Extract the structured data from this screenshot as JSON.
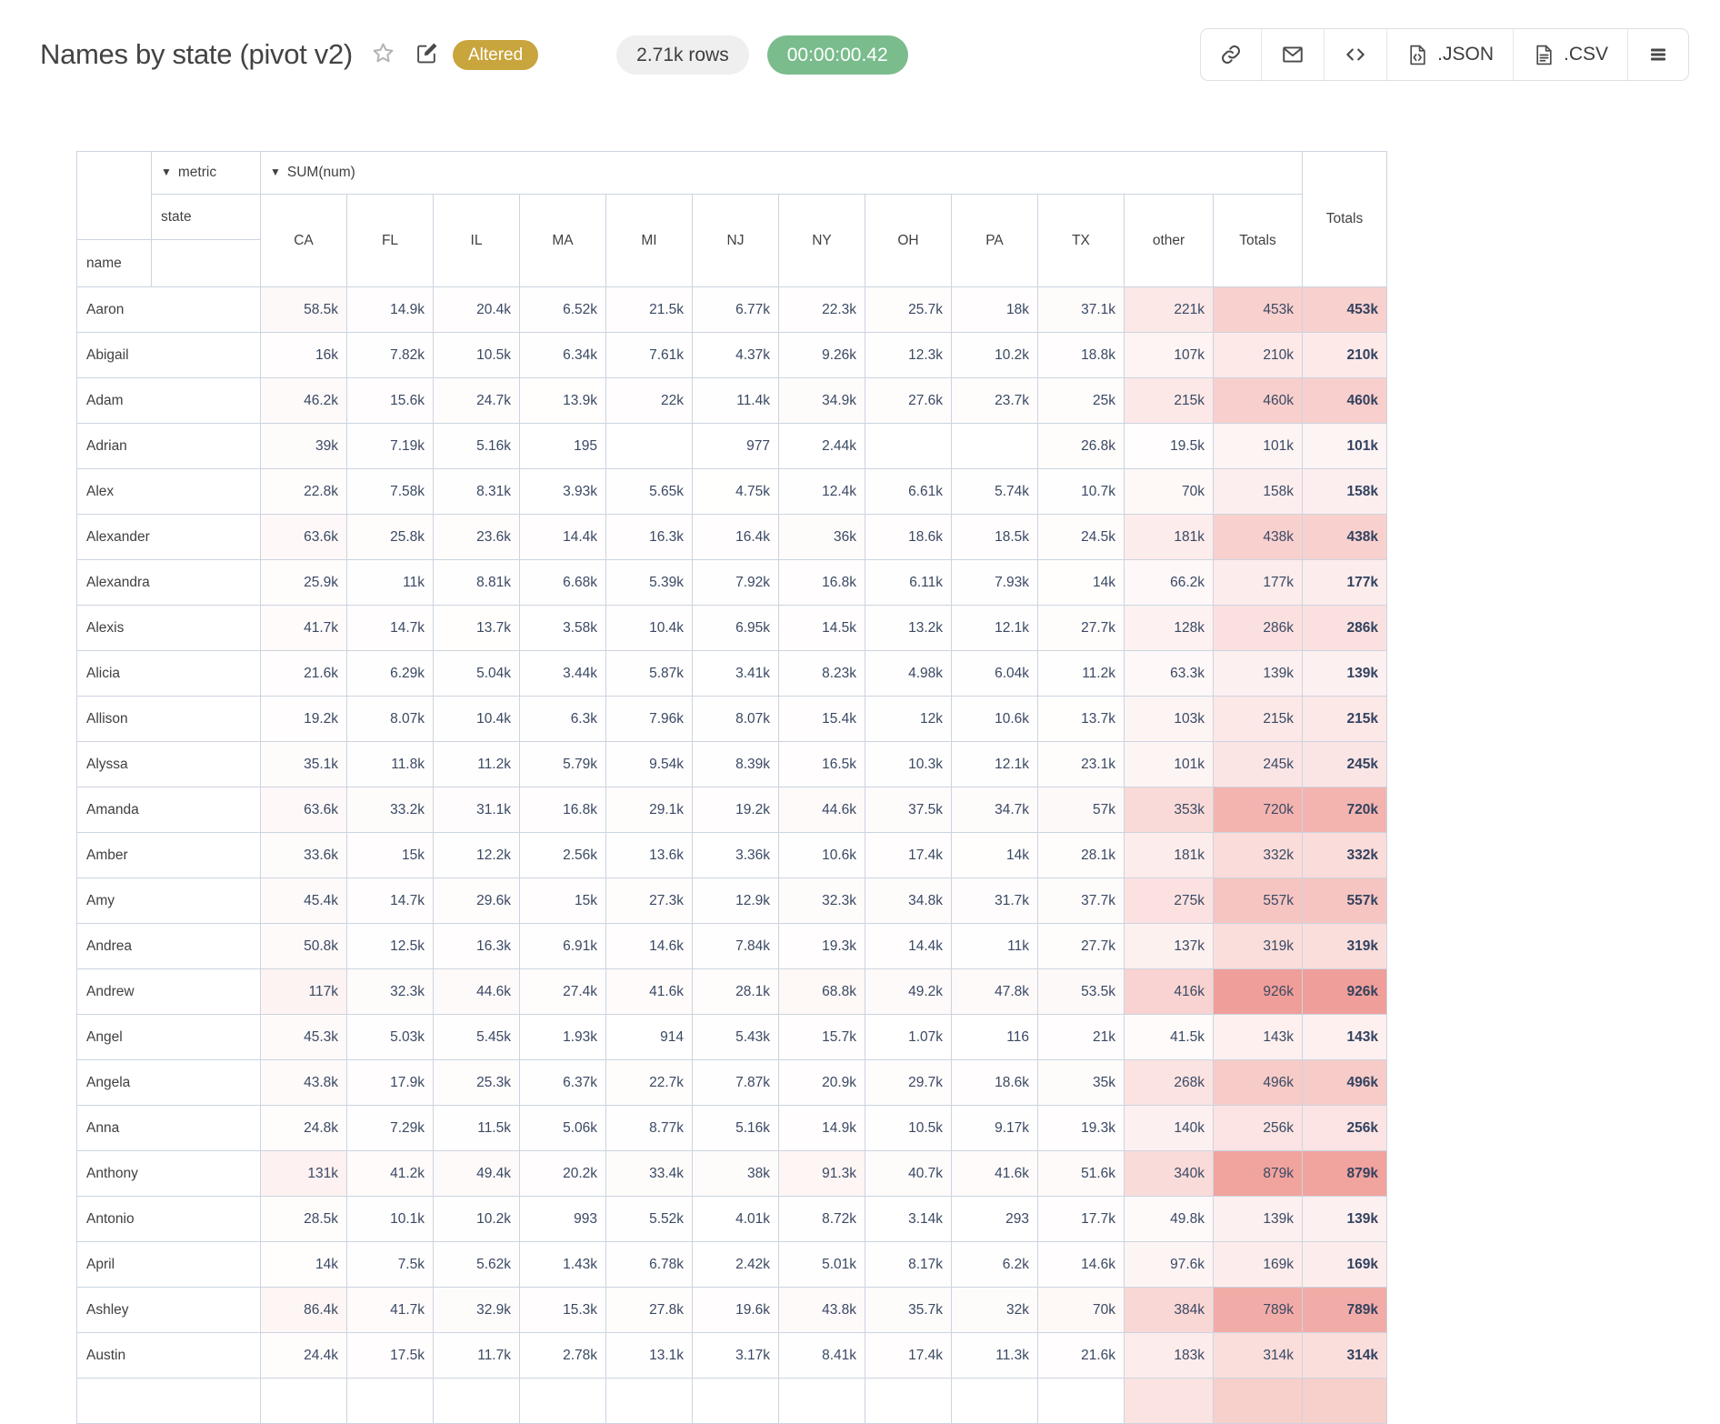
{
  "icons": {
    "collapse": "▼",
    "star": "star-outline",
    "edit": "edit-pencil-square",
    "link": "link-chain",
    "email": "envelope",
    "embed": "code-brackets",
    "menu": "hamburger-menu"
  },
  "page": {
    "title": "Names by state (pivot v2)"
  },
  "status": {
    "altered": "Altered",
    "row_count": "2.71k rows",
    "timer": "00:00:00.42"
  },
  "toolbar": {
    "json_label": ".JSON",
    "csv_label": ".CSV"
  },
  "colors": {
    "altered_badge": "#c9a53d",
    "timer_pill": "#7abc8c",
    "rows_pill": "#efefef",
    "heat_max": "#f09e99",
    "table_border": "#ccd4e0",
    "value_text": "#3a4963"
  },
  "pivot": {
    "metric_label": "metric",
    "metric_value": "SUM(num)",
    "col_dimension": "state",
    "row_dimension": "name",
    "grand_total_label": "Totals",
    "max_value": 926000,
    "columns": [
      "CA",
      "FL",
      "IL",
      "MA",
      "MI",
      "NJ",
      "NY",
      "OH",
      "PA",
      "TX",
      "other",
      "Totals"
    ],
    "rows": [
      {
        "label": "Aaron",
        "values": [
          "58.5k",
          "14.9k",
          "20.4k",
          "6.52k",
          "21.5k",
          "6.77k",
          "22.3k",
          "25.7k",
          "18k",
          "37.1k",
          "221k",
          "453k"
        ],
        "total": "453k"
      },
      {
        "label": "Abigail",
        "values": [
          "16k",
          "7.82k",
          "10.5k",
          "6.34k",
          "7.61k",
          "4.37k",
          "9.26k",
          "12.3k",
          "10.2k",
          "18.8k",
          "107k",
          "210k"
        ],
        "total": "210k"
      },
      {
        "label": "Adam",
        "values": [
          "46.2k",
          "15.6k",
          "24.7k",
          "13.9k",
          "22k",
          "11.4k",
          "34.9k",
          "27.6k",
          "23.7k",
          "25k",
          "215k",
          "460k"
        ],
        "total": "460k"
      },
      {
        "label": "Adrian",
        "values": [
          "39k",
          "7.19k",
          "5.16k",
          "195",
          "",
          "977",
          "2.44k",
          "",
          "",
          "26.8k",
          "19.5k",
          "101k"
        ],
        "total": "101k"
      },
      {
        "label": "Alex",
        "values": [
          "22.8k",
          "7.58k",
          "8.31k",
          "3.93k",
          "5.65k",
          "4.75k",
          "12.4k",
          "6.61k",
          "5.74k",
          "10.7k",
          "70k",
          "158k"
        ],
        "total": "158k"
      },
      {
        "label": "Alexander",
        "values": [
          "63.6k",
          "25.8k",
          "23.6k",
          "14.4k",
          "16.3k",
          "16.4k",
          "36k",
          "18.6k",
          "18.5k",
          "24.5k",
          "181k",
          "438k"
        ],
        "total": "438k"
      },
      {
        "label": "Alexandra",
        "values": [
          "25.9k",
          "11k",
          "8.81k",
          "6.68k",
          "5.39k",
          "7.92k",
          "16.8k",
          "6.11k",
          "7.93k",
          "14k",
          "66.2k",
          "177k"
        ],
        "total": "177k"
      },
      {
        "label": "Alexis",
        "values": [
          "41.7k",
          "14.7k",
          "13.7k",
          "3.58k",
          "10.4k",
          "6.95k",
          "14.5k",
          "13.2k",
          "12.1k",
          "27.7k",
          "128k",
          "286k"
        ],
        "total": "286k"
      },
      {
        "label": "Alicia",
        "values": [
          "21.6k",
          "6.29k",
          "5.04k",
          "3.44k",
          "5.87k",
          "3.41k",
          "8.23k",
          "4.98k",
          "6.04k",
          "11.2k",
          "63.3k",
          "139k"
        ],
        "total": "139k"
      },
      {
        "label": "Allison",
        "values": [
          "19.2k",
          "8.07k",
          "10.4k",
          "6.3k",
          "7.96k",
          "8.07k",
          "15.4k",
          "12k",
          "10.6k",
          "13.7k",
          "103k",
          "215k"
        ],
        "total": "215k"
      },
      {
        "label": "Alyssa",
        "values": [
          "35.1k",
          "11.8k",
          "11.2k",
          "5.79k",
          "9.54k",
          "8.39k",
          "16.5k",
          "10.3k",
          "12.1k",
          "23.1k",
          "101k",
          "245k"
        ],
        "total": "245k"
      },
      {
        "label": "Amanda",
        "values": [
          "63.6k",
          "33.2k",
          "31.1k",
          "16.8k",
          "29.1k",
          "19.2k",
          "44.6k",
          "37.5k",
          "34.7k",
          "57k",
          "353k",
          "720k"
        ],
        "total": "720k"
      },
      {
        "label": "Amber",
        "values": [
          "33.6k",
          "15k",
          "12.2k",
          "2.56k",
          "13.6k",
          "3.36k",
          "10.6k",
          "17.4k",
          "14k",
          "28.1k",
          "181k",
          "332k"
        ],
        "total": "332k"
      },
      {
        "label": "Amy",
        "values": [
          "45.4k",
          "14.7k",
          "29.6k",
          "15k",
          "27.3k",
          "12.9k",
          "32.3k",
          "34.8k",
          "31.7k",
          "37.7k",
          "275k",
          "557k"
        ],
        "total": "557k"
      },
      {
        "label": "Andrea",
        "values": [
          "50.8k",
          "12.5k",
          "16.3k",
          "6.91k",
          "14.6k",
          "7.84k",
          "19.3k",
          "14.4k",
          "11k",
          "27.7k",
          "137k",
          "319k"
        ],
        "total": "319k"
      },
      {
        "label": "Andrew",
        "values": [
          "117k",
          "32.3k",
          "44.6k",
          "27.4k",
          "41.6k",
          "28.1k",
          "68.8k",
          "49.2k",
          "47.8k",
          "53.5k",
          "416k",
          "926k"
        ],
        "total": "926k"
      },
      {
        "label": "Angel",
        "values": [
          "45.3k",
          "5.03k",
          "5.45k",
          "1.93k",
          "914",
          "5.43k",
          "15.7k",
          "1.07k",
          "116",
          "21k",
          "41.5k",
          "143k"
        ],
        "total": "143k"
      },
      {
        "label": "Angela",
        "values": [
          "43.8k",
          "17.9k",
          "25.3k",
          "6.37k",
          "22.7k",
          "7.87k",
          "20.9k",
          "29.7k",
          "18.6k",
          "35k",
          "268k",
          "496k"
        ],
        "total": "496k"
      },
      {
        "label": "Anna",
        "values": [
          "24.8k",
          "7.29k",
          "11.5k",
          "5.06k",
          "8.77k",
          "5.16k",
          "14.9k",
          "10.5k",
          "9.17k",
          "19.3k",
          "140k",
          "256k"
        ],
        "total": "256k"
      },
      {
        "label": "Anthony",
        "values": [
          "131k",
          "41.2k",
          "49.4k",
          "20.2k",
          "33.4k",
          "38k",
          "91.3k",
          "40.7k",
          "41.6k",
          "51.6k",
          "340k",
          "879k"
        ],
        "total": "879k"
      },
      {
        "label": "Antonio",
        "values": [
          "28.5k",
          "10.1k",
          "10.2k",
          "993",
          "5.52k",
          "4.01k",
          "8.72k",
          "3.14k",
          "293",
          "17.7k",
          "49.8k",
          "139k"
        ],
        "total": "139k"
      },
      {
        "label": "April",
        "values": [
          "14k",
          "7.5k",
          "5.62k",
          "1.43k",
          "6.78k",
          "2.42k",
          "5.01k",
          "8.17k",
          "6.2k",
          "14.6k",
          "97.6k",
          "169k"
        ],
        "total": "169k"
      },
      {
        "label": "Ashley",
        "values": [
          "86.4k",
          "41.7k",
          "32.9k",
          "15.3k",
          "27.8k",
          "19.6k",
          "43.8k",
          "35.7k",
          "32k",
          "70k",
          "384k",
          "789k"
        ],
        "total": "789k"
      },
      {
        "label": "Austin",
        "values": [
          "24.4k",
          "17.5k",
          "11.7k",
          "2.78k",
          "13.1k",
          "3.17k",
          "8.41k",
          "17.4k",
          "11.3k",
          "21.6k",
          "183k",
          "314k"
        ],
        "total": "314k"
      }
    ]
  }
}
